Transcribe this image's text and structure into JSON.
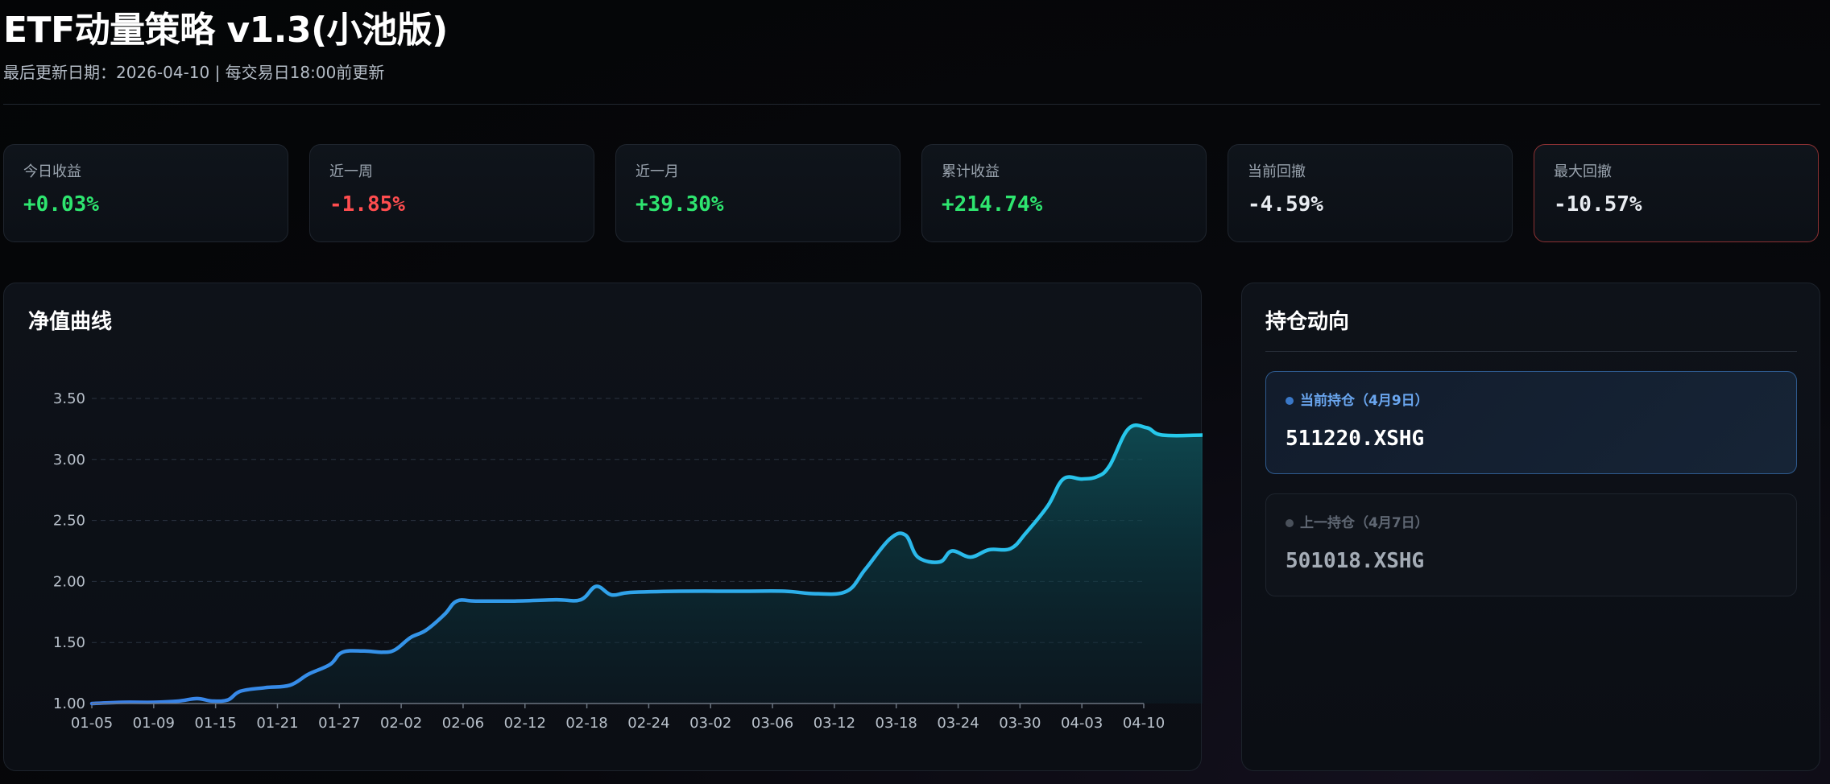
{
  "header": {
    "title": "ETF动量策略 v1.3(小池版)",
    "subtitle": "最后更新日期：2026-04-10 | 每交易日18:00前更新"
  },
  "stats": [
    {
      "label": "今日收益",
      "value": "+0.03%",
      "tone": "pos"
    },
    {
      "label": "近一周",
      "value": "-1.85%",
      "tone": "neg"
    },
    {
      "label": "近一月",
      "value": "+39.30%",
      "tone": "pos"
    },
    {
      "label": "累计收益",
      "value": "+214.74%",
      "tone": "pos"
    },
    {
      "label": "当前回撤",
      "value": "-4.59%",
      "tone": "neu"
    },
    {
      "label": "最大回撤",
      "value": "-10.57%",
      "tone": "neu"
    }
  ],
  "chart_panel": {
    "title": "净值曲线"
  },
  "holdings_panel": {
    "title": "持仓动向",
    "current": {
      "label": "当前持仓（4月9日）",
      "code": "511220.XSHG"
    },
    "previous": {
      "label": "上一持仓（4月7日）",
      "code": "501018.XSHG"
    }
  },
  "chart_data": {
    "type": "area",
    "title": "",
    "xlabel": "",
    "ylabel": "",
    "ylim": [
      1.0,
      3.5
    ],
    "yticks": [
      "1.00",
      "1.50",
      "2.00",
      "2.50",
      "3.00",
      "3.50"
    ],
    "xticks": [
      "01-05",
      "01-09",
      "01-15",
      "01-21",
      "01-27",
      "02-02",
      "02-06",
      "02-12",
      "02-18",
      "02-24",
      "03-02",
      "03-06",
      "03-12",
      "03-18",
      "03-24",
      "03-30",
      "04-03",
      "04-10"
    ],
    "grid": true,
    "line_color_start": "#3a7ee8",
    "line_color_end": "#22d8ec",
    "series": [
      {
        "values": [
          [
            0.0,
            1.0
          ],
          [
            0.5,
            1.01
          ],
          [
            1.0,
            1.01
          ],
          [
            1.4,
            1.02
          ],
          [
            1.7,
            1.04
          ],
          [
            1.95,
            1.02
          ],
          [
            2.2,
            1.03
          ],
          [
            2.4,
            1.1
          ],
          [
            2.8,
            1.13
          ],
          [
            3.2,
            1.15
          ],
          [
            3.5,
            1.24
          ],
          [
            3.85,
            1.32
          ],
          [
            4.05,
            1.42
          ],
          [
            4.4,
            1.43
          ],
          [
            4.7,
            1.42
          ],
          [
            4.9,
            1.44
          ],
          [
            5.15,
            1.54
          ],
          [
            5.4,
            1.6
          ],
          [
            5.7,
            1.73
          ],
          [
            5.9,
            1.84
          ],
          [
            6.2,
            1.84
          ],
          [
            6.8,
            1.84
          ],
          [
            7.5,
            1.85
          ],
          [
            7.9,
            1.85
          ],
          [
            8.15,
            1.96
          ],
          [
            8.4,
            1.89
          ],
          [
            8.7,
            1.91
          ],
          [
            9.5,
            1.92
          ],
          [
            10.5,
            1.92
          ],
          [
            11.2,
            1.92
          ],
          [
            11.7,
            1.9
          ],
          [
            12.2,
            1.92
          ],
          [
            12.5,
            2.1
          ],
          [
            12.9,
            2.35
          ],
          [
            13.15,
            2.38
          ],
          [
            13.35,
            2.2
          ],
          [
            13.7,
            2.16
          ],
          [
            13.9,
            2.25
          ],
          [
            14.2,
            2.2
          ],
          [
            14.5,
            2.26
          ],
          [
            14.85,
            2.27
          ],
          [
            15.1,
            2.4
          ],
          [
            15.45,
            2.62
          ],
          [
            15.7,
            2.84
          ],
          [
            16.0,
            2.84
          ],
          [
            16.25,
            2.86
          ],
          [
            16.45,
            2.95
          ],
          [
            16.75,
            3.25
          ],
          [
            17.05,
            3.26
          ],
          [
            17.3,
            3.2
          ],
          [
            18.0,
            3.2
          ],
          [
            19.0,
            3.21
          ],
          [
            19.6,
            3.21
          ],
          [
            19.9,
            3.28
          ],
          [
            20.15,
            3.0
          ],
          [
            20.45,
            3.14
          ],
          [
            20.8,
            3.15
          ]
        ]
      }
    ]
  }
}
